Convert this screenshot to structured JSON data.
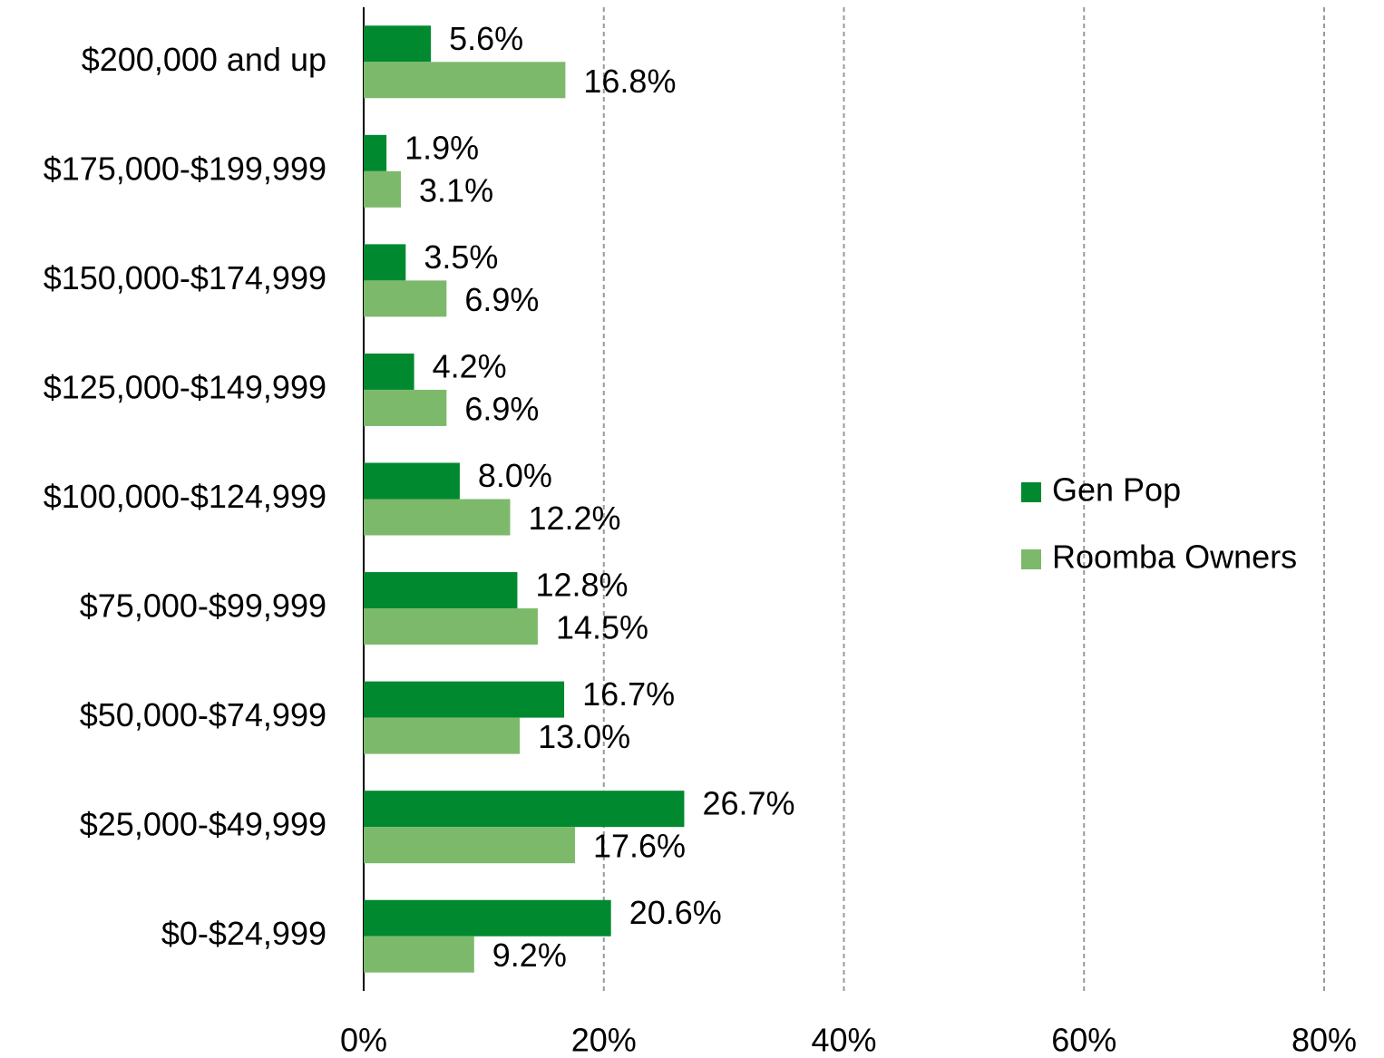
{
  "chart_data": {
    "type": "hbar",
    "categories": [
      "$200,000 and up",
      "$175,000-$199,999",
      "$150,000-$174,999",
      "$125,000-$149,999",
      "$100,000-$124,999",
      "$75,000-$99,999",
      "$50,000-$74,999",
      "$25,000-$49,999",
      "$0-$24,999"
    ],
    "series": [
      {
        "name": "Gen Pop",
        "color": "#00892f",
        "values": [
          5.6,
          1.9,
          3.5,
          4.2,
          8.0,
          12.8,
          16.7,
          26.7,
          20.6
        ],
        "value_labels": [
          "5.6%",
          "1.9%",
          "3.5%",
          "4.2%",
          "8.0%",
          "12.8%",
          "16.7%",
          "26.7%",
          "20.6%"
        ]
      },
      {
        "name": "Roomba Owners",
        "color": "#7db96b",
        "values": [
          16.8,
          3.1,
          6.9,
          6.9,
          12.2,
          14.5,
          13.0,
          17.6,
          9.2
        ],
        "value_labels": [
          "16.8%",
          "3.1%",
          "6.9%",
          "6.9%",
          "12.2%",
          "14.5%",
          "13.0%",
          "17.6%",
          "9.2%"
        ]
      }
    ],
    "xlim": [
      0,
      80
    ],
    "xticks": [
      {
        "value": 0,
        "label": "0%"
      },
      {
        "value": 20,
        "label": "20%"
      },
      {
        "value": 40,
        "label": "40%"
      },
      {
        "value": 60,
        "label": "60%"
      },
      {
        "value": 80,
        "label": "80%"
      }
    ],
    "grid": true,
    "legend": "right"
  }
}
